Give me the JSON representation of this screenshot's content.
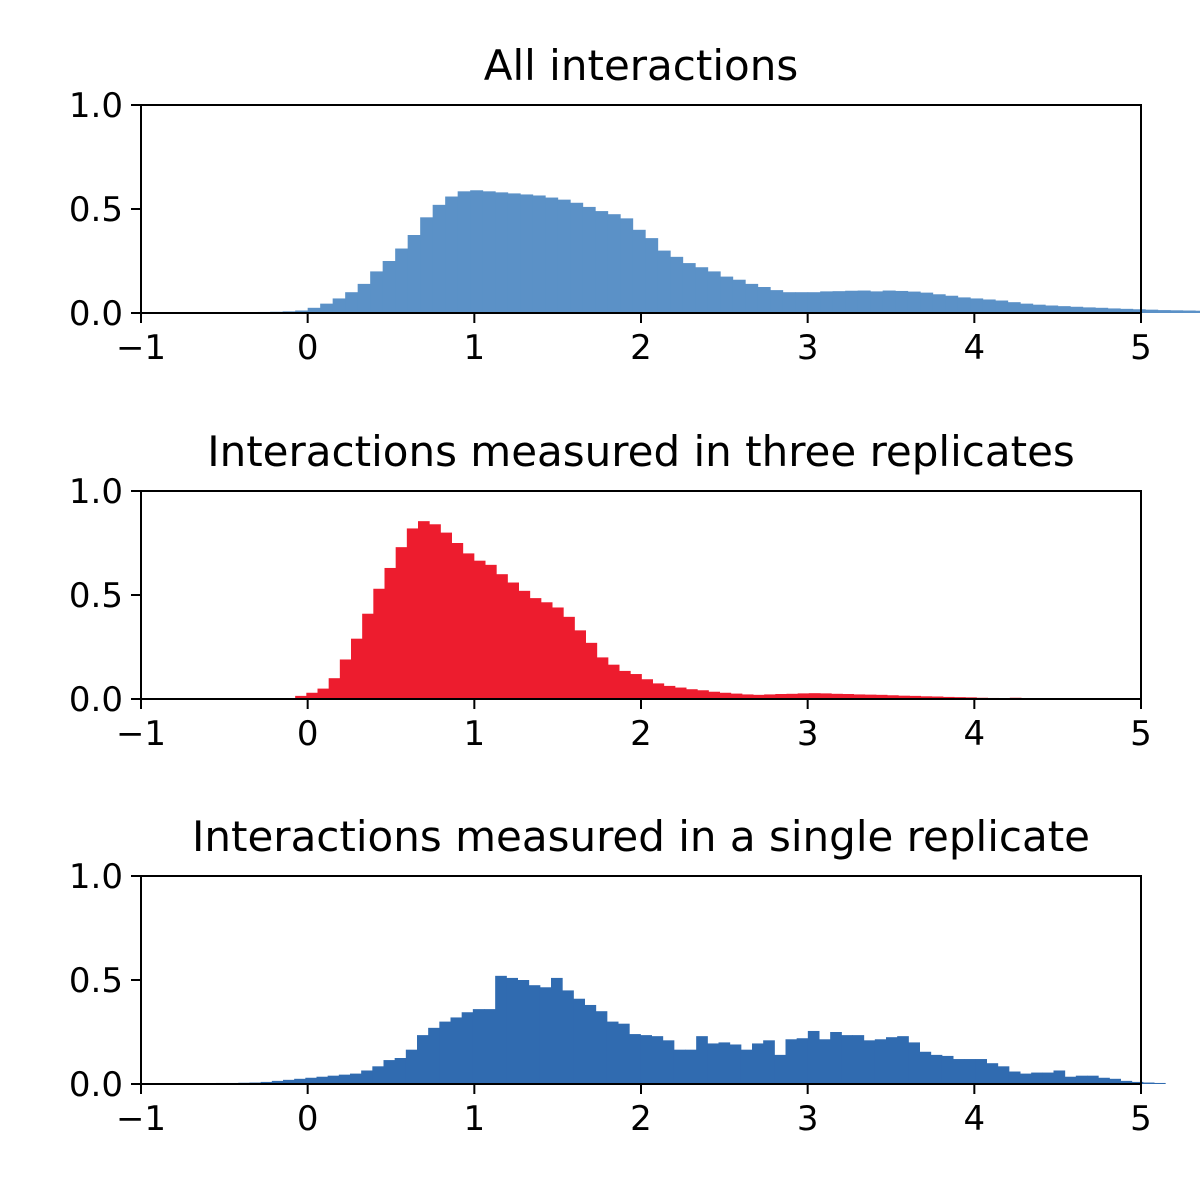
{
  "chart_data": [
    {
      "type": "bar",
      "title": "All interactions",
      "color": "#5b91c7",
      "xlim": [
        -1,
        5
      ],
      "ylim": [
        0,
        1.0
      ],
      "xticks": [
        "−1",
        "0",
        "1",
        "2",
        "3",
        "4",
        "5"
      ],
      "yticks": [
        "0.0",
        "0.5",
        "1.0"
      ],
      "bin_start": -0.3,
      "bin_width": 0.075,
      "values": [
        0.005,
        0.006,
        0.008,
        0.012,
        0.025,
        0.045,
        0.07,
        0.1,
        0.14,
        0.2,
        0.25,
        0.31,
        0.375,
        0.46,
        0.52,
        0.56,
        0.585,
        0.59,
        0.585,
        0.58,
        0.575,
        0.57,
        0.565,
        0.555,
        0.545,
        0.53,
        0.51,
        0.49,
        0.475,
        0.455,
        0.4,
        0.36,
        0.3,
        0.27,
        0.24,
        0.22,
        0.2,
        0.175,
        0.16,
        0.14,
        0.125,
        0.11,
        0.1,
        0.1,
        0.1,
        0.104,
        0.105,
        0.107,
        0.108,
        0.104,
        0.108,
        0.106,
        0.103,
        0.098,
        0.09,
        0.083,
        0.075,
        0.07,
        0.065,
        0.06,
        0.052,
        0.045,
        0.04,
        0.036,
        0.033,
        0.03,
        0.027,
        0.025,
        0.022,
        0.02,
        0.018,
        0.016,
        0.014,
        0.013,
        0.012,
        0.011,
        0.01,
        0.009,
        0.008,
        0.006,
        0.005
      ]
    },
    {
      "type": "bar",
      "title": "Interactions measured in three replicates",
      "color": "#ed1c2e",
      "xlim": [
        -1,
        5
      ],
      "ylim": [
        0,
        1.0
      ],
      "xticks": [
        "−1",
        "0",
        "1",
        "2",
        "3",
        "4",
        "5"
      ],
      "yticks": [
        "0.0",
        "0.5",
        "1.0"
      ],
      "bin_start": -0.075,
      "bin_width": 0.067,
      "values": [
        0.015,
        0.03,
        0.05,
        0.1,
        0.19,
        0.29,
        0.41,
        0.53,
        0.63,
        0.73,
        0.82,
        0.855,
        0.84,
        0.8,
        0.75,
        0.7,
        0.665,
        0.645,
        0.6,
        0.56,
        0.52,
        0.485,
        0.465,
        0.44,
        0.395,
        0.33,
        0.27,
        0.2,
        0.165,
        0.135,
        0.12,
        0.095,
        0.075,
        0.063,
        0.055,
        0.047,
        0.042,
        0.035,
        0.03,
        0.026,
        0.022,
        0.02,
        0.022,
        0.024,
        0.025,
        0.027,
        0.028,
        0.027,
        0.025,
        0.024,
        0.022,
        0.021,
        0.02,
        0.018,
        0.016,
        0.015,
        0.013,
        0.012,
        0.01,
        0.009,
        0.008,
        0.006,
        0.005,
        0.004,
        0.006,
        0.004,
        0.003
      ]
    },
    {
      "type": "bar",
      "title": "Interactions measured in a single replicate",
      "color": "#306bb0",
      "xlim": [
        -1,
        5
      ],
      "ylim": [
        0,
        1.0
      ],
      "xticks": [
        "−1",
        "0",
        "1",
        "2",
        "3",
        "4",
        "5"
      ],
      "yticks": [
        "0.0",
        "0.5",
        "1.0"
      ],
      "bin_start": -0.55,
      "bin_width": 0.067,
      "values": [
        0.005,
        0.005,
        0.006,
        0.007,
        0.01,
        0.015,
        0.02,
        0.025,
        0.03,
        0.035,
        0.04,
        0.045,
        0.05,
        0.065,
        0.085,
        0.115,
        0.125,
        0.165,
        0.235,
        0.27,
        0.3,
        0.32,
        0.345,
        0.36,
        0.36,
        0.52,
        0.51,
        0.5,
        0.475,
        0.465,
        0.51,
        0.45,
        0.41,
        0.38,
        0.35,
        0.3,
        0.29,
        0.24,
        0.235,
        0.23,
        0.21,
        0.165,
        0.165,
        0.23,
        0.195,
        0.2,
        0.19,
        0.165,
        0.195,
        0.21,
        0.14,
        0.215,
        0.22,
        0.255,
        0.215,
        0.25,
        0.235,
        0.235,
        0.21,
        0.215,
        0.225,
        0.23,
        0.2,
        0.155,
        0.14,
        0.135,
        0.12,
        0.12,
        0.12,
        0.1,
        0.085,
        0.06,
        0.05,
        0.055,
        0.055,
        0.065,
        0.035,
        0.04,
        0.04,
        0.03,
        0.025,
        0.015,
        0.01,
        0.007,
        0.005
      ]
    }
  ]
}
